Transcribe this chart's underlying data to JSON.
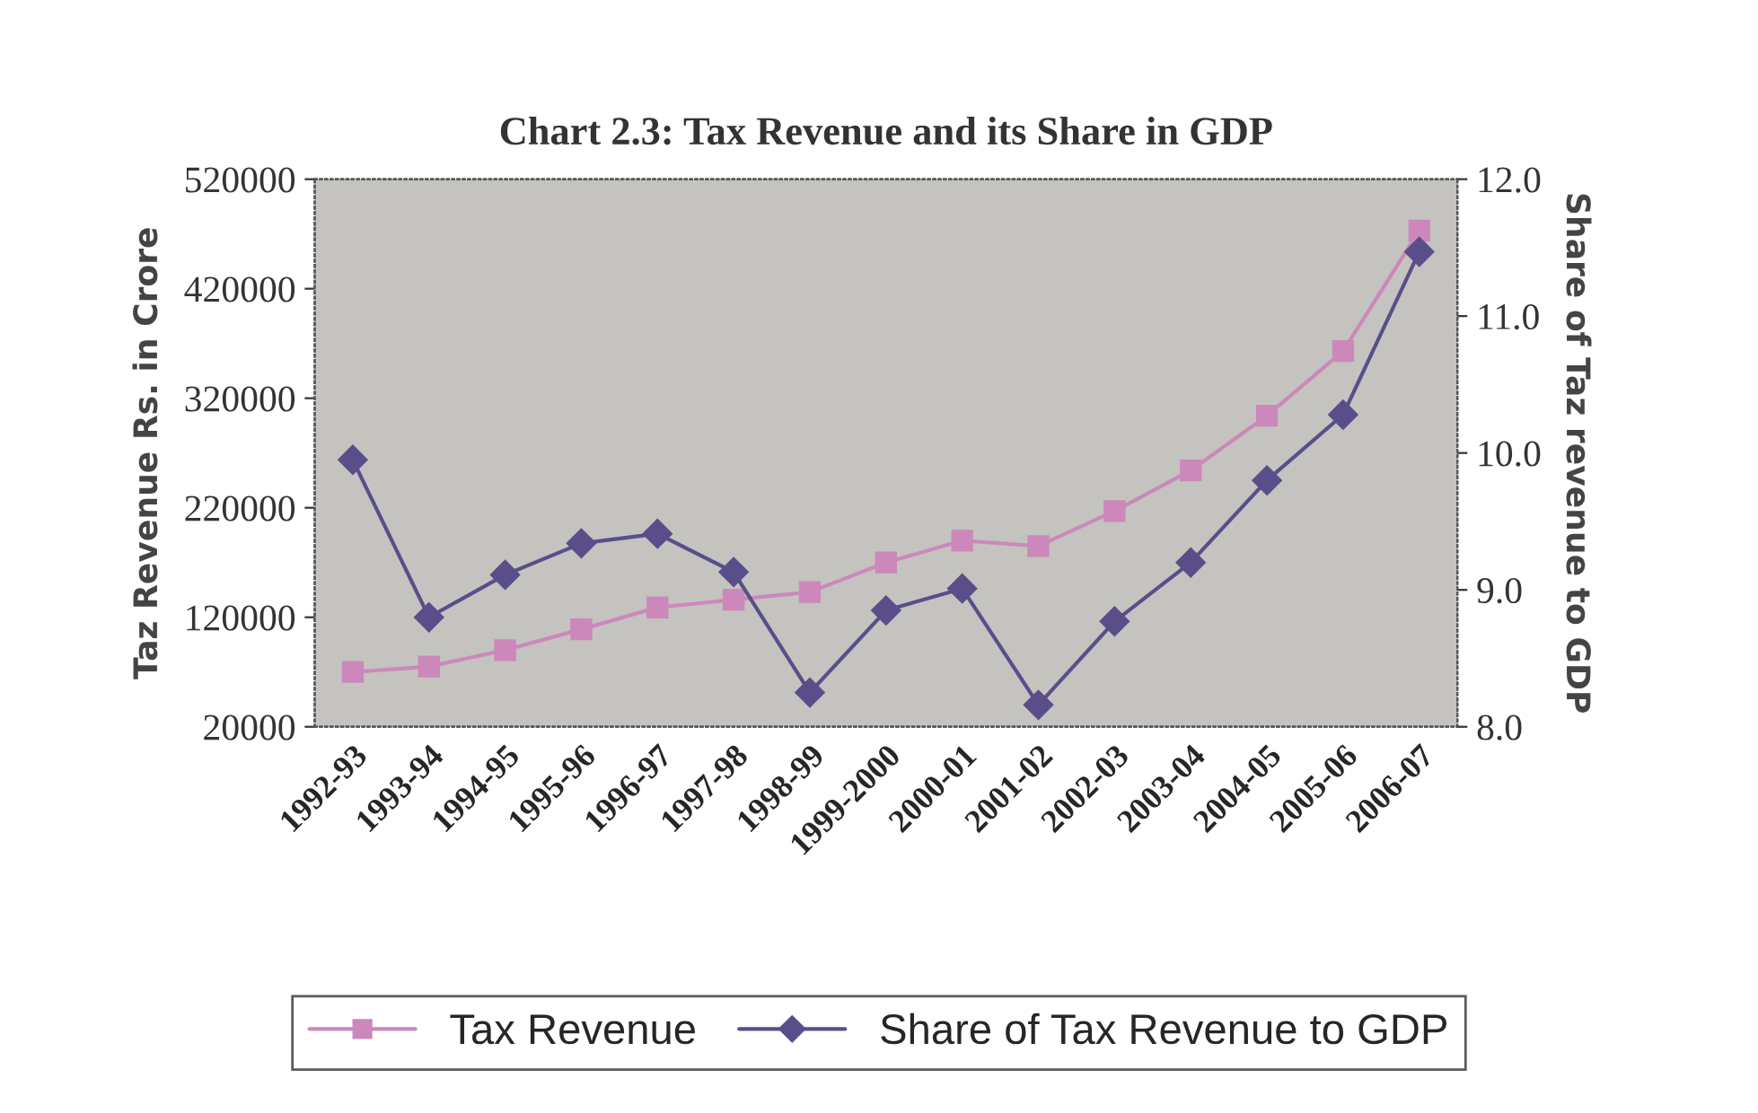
{
  "chart_data": {
    "type": "line",
    "title": "Chart 2.3: Tax Revenue and its Share in GDP",
    "categories": [
      "1992-93",
      "1993-94",
      "1994-95",
      "1995-96",
      "1996-97",
      "1997-98",
      "1998-99",
      "1999-2000",
      "2000-01",
      "2001-02",
      "2002-03",
      "2003-04",
      "2004-05",
      "2005-06",
      "2006-07"
    ],
    "series": [
      {
        "name": "Tax Revenue",
        "color": "#cc88bb",
        "marker": "square",
        "values": [
          70000,
          75000,
          90000,
          109000,
          129000,
          136000,
          143000,
          170000,
          190000,
          185000,
          217000,
          254000,
          304000,
          363000,
          473000
        ]
      },
      {
        "name": "Share of Tax Revenue to GDP",
        "color": "#5a4e8a",
        "marker": "diamond",
        "axis": "y2",
        "values": [
          9.95,
          8.8,
          9.11,
          9.34,
          9.41,
          9.13,
          8.25,
          8.85,
          9.01,
          8.16,
          8.77,
          9.2,
          9.8,
          10.28,
          11.47
        ]
      }
    ],
    "ylabel": "Taz Revenue Rs. in Crore",
    "y2label": "Share of Taz revenue to GDP",
    "ylim": [
      20000,
      520000
    ],
    "yticks": [
      20000,
      120000,
      220000,
      320000,
      420000,
      520000
    ],
    "y2lim": [
      8.0,
      12.0
    ],
    "y2ticks": [
      {
        "value": 8,
        "label": "8.0"
      },
      {
        "value": 9,
        "label": "9.0"
      },
      {
        "value": 10,
        "label": "10.0"
      },
      {
        "value": 11,
        "label": "11.0"
      },
      {
        "value": 12,
        "label": "12.0"
      }
    ],
    "grid": false,
    "legend": "bottom",
    "line_style": "solid"
  }
}
